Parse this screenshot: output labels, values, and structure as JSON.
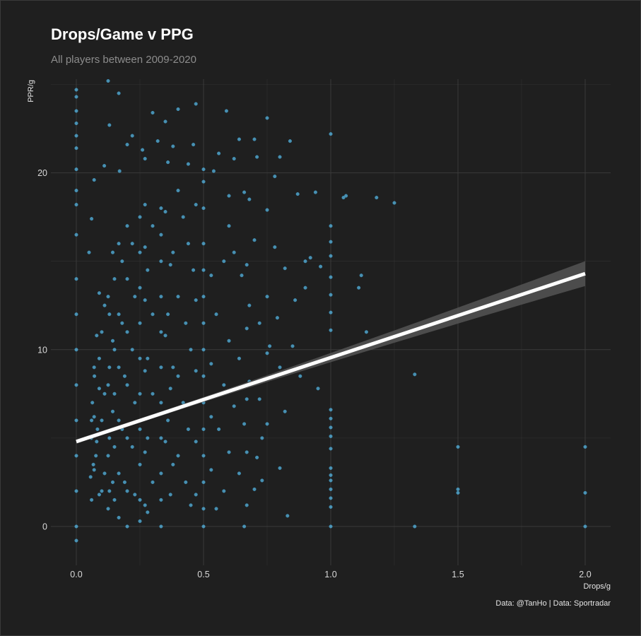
{
  "title": "Drops/Game v PPG",
  "subtitle": "All players between 2009-2020",
  "caption": "Data: @TanHo | Data: Sportradar",
  "colors": {
    "background": "#1f1f1f",
    "grid": "#3a3a3a",
    "points": "#5bc0f0",
    "trend": "#ffffff",
    "band": "#555555"
  },
  "chart_data": {
    "type": "scatter",
    "title": "Drops/Game v PPG",
    "subtitle": "All players between 2009-2020",
    "xlabel": "Drops/g",
    "ylabel": "PPR/g",
    "xlim": [
      -0.1,
      2.1
    ],
    "ylim": [
      -2.2,
      25.3
    ],
    "x_ticks": [
      "0.0",
      "0.5",
      "1.0",
      "1.5",
      "2.0"
    ],
    "y_ticks": [
      "0",
      "10",
      "20"
    ],
    "x_tick_values": [
      0,
      0.5,
      1.0,
      1.5,
      2.0
    ],
    "y_tick_values": [
      0,
      10,
      20
    ],
    "grid": true,
    "legend": "none",
    "trend_line": {
      "type": "linear",
      "x": [
        0,
        2.0
      ],
      "y": [
        4.8,
        14.3
      ],
      "confidence_band_lower_at_xmax": 13.6,
      "confidence_band_upper_at_xmax": 15.0
    },
    "points": [
      [
        0.0,
        24.7
      ],
      [
        0.0,
        24.3
      ],
      [
        0.0,
        23.5
      ],
      [
        0.0,
        22.8
      ],
      [
        0.0,
        22.1
      ],
      [
        0.0,
        21.4
      ],
      [
        0.0,
        20.2
      ],
      [
        0.0,
        19.0
      ],
      [
        0.0,
        18.2
      ],
      [
        0.0,
        16.5
      ],
      [
        0.0,
        14.0
      ],
      [
        0.0,
        12.0
      ],
      [
        0.0,
        10.0
      ],
      [
        0.0,
        8.0
      ],
      [
        0.0,
        6.0
      ],
      [
        0.0,
        4.0
      ],
      [
        0.0,
        2.0
      ],
      [
        0.0,
        0.0
      ],
      [
        0.0,
        -0.8
      ],
      [
        0.125,
        25.2
      ],
      [
        0.167,
        24.5
      ],
      [
        0.3,
        23.4
      ],
      [
        0.4,
        23.6
      ],
      [
        0.47,
        23.9
      ],
      [
        0.59,
        23.5
      ],
      [
        0.75,
        23.1
      ],
      [
        0.13,
        22.7
      ],
      [
        0.22,
        22.1
      ],
      [
        0.35,
        22.9
      ],
      [
        0.2,
        21.6
      ],
      [
        0.32,
        21.8
      ],
      [
        0.38,
        21.5
      ],
      [
        0.46,
        21.6
      ],
      [
        0.64,
        21.9
      ],
      [
        0.7,
        21.9
      ],
      [
        0.84,
        21.8
      ],
      [
        1.0,
        22.2
      ],
      [
        0.26,
        21.3
      ],
      [
        0.56,
        21.1
      ],
      [
        0.62,
        20.8
      ],
      [
        0.27,
        20.8
      ],
      [
        0.36,
        20.6
      ],
      [
        0.44,
        20.5
      ],
      [
        0.5,
        20.2
      ],
      [
        0.54,
        20.1
      ],
      [
        0.71,
        20.9
      ],
      [
        0.8,
        20.9
      ],
      [
        0.11,
        20.4
      ],
      [
        0.17,
        20.1
      ],
      [
        0.78,
        19.8
      ],
      [
        0.87,
        18.8
      ],
      [
        0.94,
        18.9
      ],
      [
        1.06,
        18.7
      ],
      [
        1.18,
        18.6
      ],
      [
        1.25,
        18.3
      ],
      [
        1.05,
        18.6
      ],
      [
        0.6,
        18.7
      ],
      [
        0.66,
        18.9
      ],
      [
        0.68,
        18.5
      ],
      [
        0.75,
        17.9
      ],
      [
        0.9,
        15.0
      ],
      [
        0.92,
        15.2
      ],
      [
        0.96,
        14.7
      ],
      [
        1.0,
        17.0
      ],
      [
        1.0,
        16.1
      ],
      [
        1.0,
        15.3
      ],
      [
        1.0,
        14.1
      ],
      [
        1.0,
        13.1
      ],
      [
        1.0,
        12.1
      ],
      [
        1.0,
        11.1
      ],
      [
        1.12,
        14.2
      ],
      [
        1.11,
        13.5
      ],
      [
        1.14,
        11.0
      ],
      [
        1.33,
        8.6
      ],
      [
        0.95,
        7.8
      ],
      [
        0.82,
        6.5
      ],
      [
        0.75,
        5.8
      ],
      [
        0.73,
        5.0
      ],
      [
        0.71,
        3.9
      ],
      [
        0.8,
        3.3
      ],
      [
        0.83,
        0.6
      ],
      [
        0.66,
        0.0
      ],
      [
        0.73,
        2.6
      ],
      [
        0.7,
        2.1
      ],
      [
        1.0,
        6.6
      ],
      [
        1.0,
        6.1
      ],
      [
        1.0,
        5.6
      ],
      [
        1.0,
        5.1
      ],
      [
        1.0,
        4.4
      ],
      [
        1.0,
        3.3
      ],
      [
        1.0,
        2.9
      ],
      [
        1.0,
        2.6
      ],
      [
        1.0,
        2.1
      ],
      [
        1.0,
        1.6
      ],
      [
        1.0,
        1.1
      ],
      [
        1.0,
        0.0
      ],
      [
        1.33,
        0.0
      ],
      [
        1.5,
        4.5
      ],
      [
        1.5,
        2.1
      ],
      [
        1.5,
        1.9
      ],
      [
        2.0,
        4.5
      ],
      [
        2.0,
        1.9
      ],
      [
        2.0,
        0.0
      ],
      [
        0.5,
        19.5
      ],
      [
        0.5,
        18.0
      ],
      [
        0.5,
        16.0
      ],
      [
        0.5,
        14.5
      ],
      [
        0.5,
        13.0
      ],
      [
        0.5,
        11.5
      ],
      [
        0.5,
        10.0
      ],
      [
        0.5,
        8.5
      ],
      [
        0.5,
        7.0
      ],
      [
        0.5,
        5.5
      ],
      [
        0.5,
        4.0
      ],
      [
        0.5,
        2.5
      ],
      [
        0.5,
        1.0
      ],
      [
        0.5,
        0.0
      ],
      [
        0.333,
        18.0
      ],
      [
        0.333,
        16.5
      ],
      [
        0.333,
        15.0
      ],
      [
        0.333,
        13.0
      ],
      [
        0.333,
        11.0
      ],
      [
        0.333,
        9.0
      ],
      [
        0.333,
        7.0
      ],
      [
        0.333,
        5.0
      ],
      [
        0.333,
        3.0
      ],
      [
        0.333,
        1.5
      ],
      [
        0.333,
        0.0
      ],
      [
        0.25,
        17.5
      ],
      [
        0.25,
        15.5
      ],
      [
        0.25,
        13.5
      ],
      [
        0.25,
        11.5
      ],
      [
        0.25,
        9.5
      ],
      [
        0.25,
        7.5
      ],
      [
        0.25,
        5.5
      ],
      [
        0.25,
        3.5
      ],
      [
        0.25,
        1.5
      ],
      [
        0.25,
        0.3
      ],
      [
        0.2,
        17.0
      ],
      [
        0.2,
        14.0
      ],
      [
        0.2,
        11.0
      ],
      [
        0.2,
        8.0
      ],
      [
        0.2,
        5.0
      ],
      [
        0.2,
        2.0
      ],
      [
        0.2,
        0.0
      ],
      [
        0.167,
        16.0
      ],
      [
        0.167,
        12.0
      ],
      [
        0.167,
        9.0
      ],
      [
        0.167,
        6.0
      ],
      [
        0.167,
        3.0
      ],
      [
        0.167,
        0.5
      ],
      [
        0.143,
        15.5
      ],
      [
        0.143,
        10.5
      ],
      [
        0.143,
        6.5
      ],
      [
        0.143,
        2.5
      ],
      [
        0.125,
        13.0
      ],
      [
        0.125,
        8.0
      ],
      [
        0.125,
        4.0
      ],
      [
        0.125,
        1.0
      ],
      [
        0.111,
        12.5
      ],
      [
        0.111,
        7.5
      ],
      [
        0.111,
        3.0
      ],
      [
        0.1,
        11.0
      ],
      [
        0.1,
        6.0
      ],
      [
        0.1,
        2.0
      ],
      [
        0.09,
        9.5
      ],
      [
        0.083,
        5.5
      ],
      [
        0.077,
        4.0
      ],
      [
        0.071,
        8.5
      ],
      [
        0.067,
        3.5
      ],
      [
        0.063,
        7.0
      ],
      [
        0.059,
        5.0
      ],
      [
        0.056,
        2.8
      ],
      [
        0.06,
        6.0
      ],
      [
        0.05,
        15.5
      ],
      [
        0.06,
        17.4
      ],
      [
        0.07,
        19.6
      ],
      [
        0.6,
        17.0
      ],
      [
        0.62,
        15.5
      ],
      [
        0.65,
        14.2
      ],
      [
        0.68,
        12.5
      ],
      [
        0.72,
        11.5
      ],
      [
        0.76,
        10.2
      ],
      [
        0.8,
        9.0
      ],
      [
        0.86,
        12.8
      ],
      [
        0.9,
        13.5
      ],
      [
        0.78,
        15.8
      ],
      [
        0.82,
        14.6
      ],
      [
        0.7,
        16.2
      ],
      [
        0.58,
        15.0
      ],
      [
        0.55,
        12.0
      ],
      [
        0.6,
        10.5
      ],
      [
        0.64,
        9.5
      ],
      [
        0.58,
        8.0
      ],
      [
        0.62,
        6.8
      ],
      [
        0.56,
        5.5
      ],
      [
        0.6,
        4.2
      ],
      [
        0.64,
        3.0
      ],
      [
        0.58,
        2.0
      ],
      [
        0.55,
        1.0
      ],
      [
        0.68,
        8.2
      ],
      [
        0.72,
        7.2
      ],
      [
        0.66,
        5.8
      ],
      [
        0.4,
        19.0
      ],
      [
        0.42,
        17.5
      ],
      [
        0.44,
        16.0
      ],
      [
        0.46,
        14.5
      ],
      [
        0.4,
        13.0
      ],
      [
        0.43,
        11.5
      ],
      [
        0.45,
        10.0
      ],
      [
        0.4,
        8.5
      ],
      [
        0.42,
        7.0
      ],
      [
        0.44,
        5.5
      ],
      [
        0.4,
        4.0
      ],
      [
        0.43,
        2.5
      ],
      [
        0.45,
        1.2
      ],
      [
        0.38,
        15.5
      ],
      [
        0.36,
        12.0
      ],
      [
        0.38,
        9.0
      ],
      [
        0.36,
        6.0
      ],
      [
        0.38,
        3.5
      ],
      [
        0.3,
        17.0
      ],
      [
        0.28,
        14.5
      ],
      [
        0.3,
        12.0
      ],
      [
        0.28,
        9.5
      ],
      [
        0.3,
        7.5
      ],
      [
        0.28,
        5.0
      ],
      [
        0.3,
        2.5
      ],
      [
        0.28,
        0.8
      ],
      [
        0.22,
        16.0
      ],
      [
        0.23,
        13.0
      ],
      [
        0.22,
        10.0
      ],
      [
        0.23,
        7.0
      ],
      [
        0.22,
        4.5
      ],
      [
        0.23,
        1.8
      ],
      [
        0.18,
        15.0
      ],
      [
        0.18,
        11.5
      ],
      [
        0.19,
        8.5
      ],
      [
        0.18,
        5.5
      ],
      [
        0.19,
        2.5
      ],
      [
        0.15,
        14.0
      ],
      [
        0.15,
        10.0
      ],
      [
        0.15,
        7.5
      ],
      [
        0.15,
        4.5
      ],
      [
        0.15,
        1.5
      ],
      [
        0.13,
        12.0
      ],
      [
        0.13,
        9.0
      ],
      [
        0.13,
        5.0
      ],
      [
        0.13,
        2.0
      ],
      [
        0.09,
        13.2
      ],
      [
        0.08,
        10.8
      ],
      [
        0.09,
        7.8
      ],
      [
        0.08,
        4.8
      ],
      [
        0.09,
        1.8
      ],
      [
        0.07,
        9.0
      ],
      [
        0.07,
        6.2
      ],
      [
        0.07,
        3.2
      ],
      [
        0.06,
        1.5
      ],
      [
        0.35,
        17.8
      ],
      [
        0.37,
        14.8
      ],
      [
        0.35,
        10.8
      ],
      [
        0.37,
        7.8
      ],
      [
        0.35,
        4.8
      ],
      [
        0.37,
        1.8
      ],
      [
        0.27,
        18.2
      ],
      [
        0.27,
        15.8
      ],
      [
        0.27,
        12.8
      ],
      [
        0.27,
        8.8
      ],
      [
        0.27,
        4.2
      ],
      [
        0.27,
        1.2
      ],
      [
        0.47,
        18.2
      ],
      [
        0.47,
        12.8
      ],
      [
        0.47,
        8.8
      ],
      [
        0.47,
        4.8
      ],
      [
        0.47,
        1.8
      ],
      [
        0.53,
        14.2
      ],
      [
        0.53,
        9.2
      ],
      [
        0.53,
        6.2
      ],
      [
        0.53,
        3.2
      ],
      [
        0.75,
        13.0
      ],
      [
        0.75,
        9.8
      ],
      [
        0.79,
        11.8
      ],
      [
        0.85,
        10.2
      ],
      [
        0.88,
        8.5
      ],
      [
        0.67,
        14.8
      ],
      [
        0.67,
        11.2
      ],
      [
        0.67,
        7.2
      ],
      [
        0.67,
        4.2
      ],
      [
        0.67,
        1.2
      ]
    ]
  }
}
